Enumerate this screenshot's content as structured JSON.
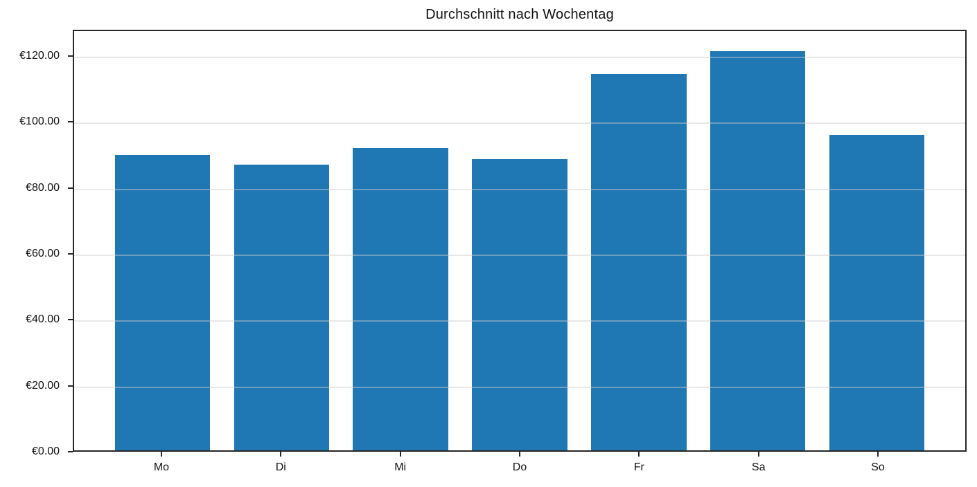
{
  "chart_data": {
    "type": "bar",
    "title": "Durchschnitt nach Wochentag",
    "categories": [
      "Mo",
      "Di",
      "Mi",
      "Do",
      "Fr",
      "Sa",
      "So"
    ],
    "values": [
      90.3,
      87.2,
      92.4,
      88.9,
      114.9,
      121.9,
      96.4
    ],
    "xlabel": "",
    "ylabel": "",
    "ylim": [
      0,
      128
    ],
    "yticks": [
      {
        "value": 0,
        "label": "€0.00"
      },
      {
        "value": 20,
        "label": "€20.00"
      },
      {
        "value": 40,
        "label": "€40.00"
      },
      {
        "value": 60,
        "label": "€60.00"
      },
      {
        "value": 80,
        "label": "€80.00"
      },
      {
        "value": 100,
        "label": "€100.00"
      },
      {
        "value": 120,
        "label": "€120.00"
      }
    ],
    "grid": "horizontal",
    "legend": "none",
    "colors": {
      "bar": "#1f77b4",
      "grid": "#e6e6e6",
      "axis": "#262626",
      "text": "#111111",
      "background": "#ffffff"
    }
  }
}
